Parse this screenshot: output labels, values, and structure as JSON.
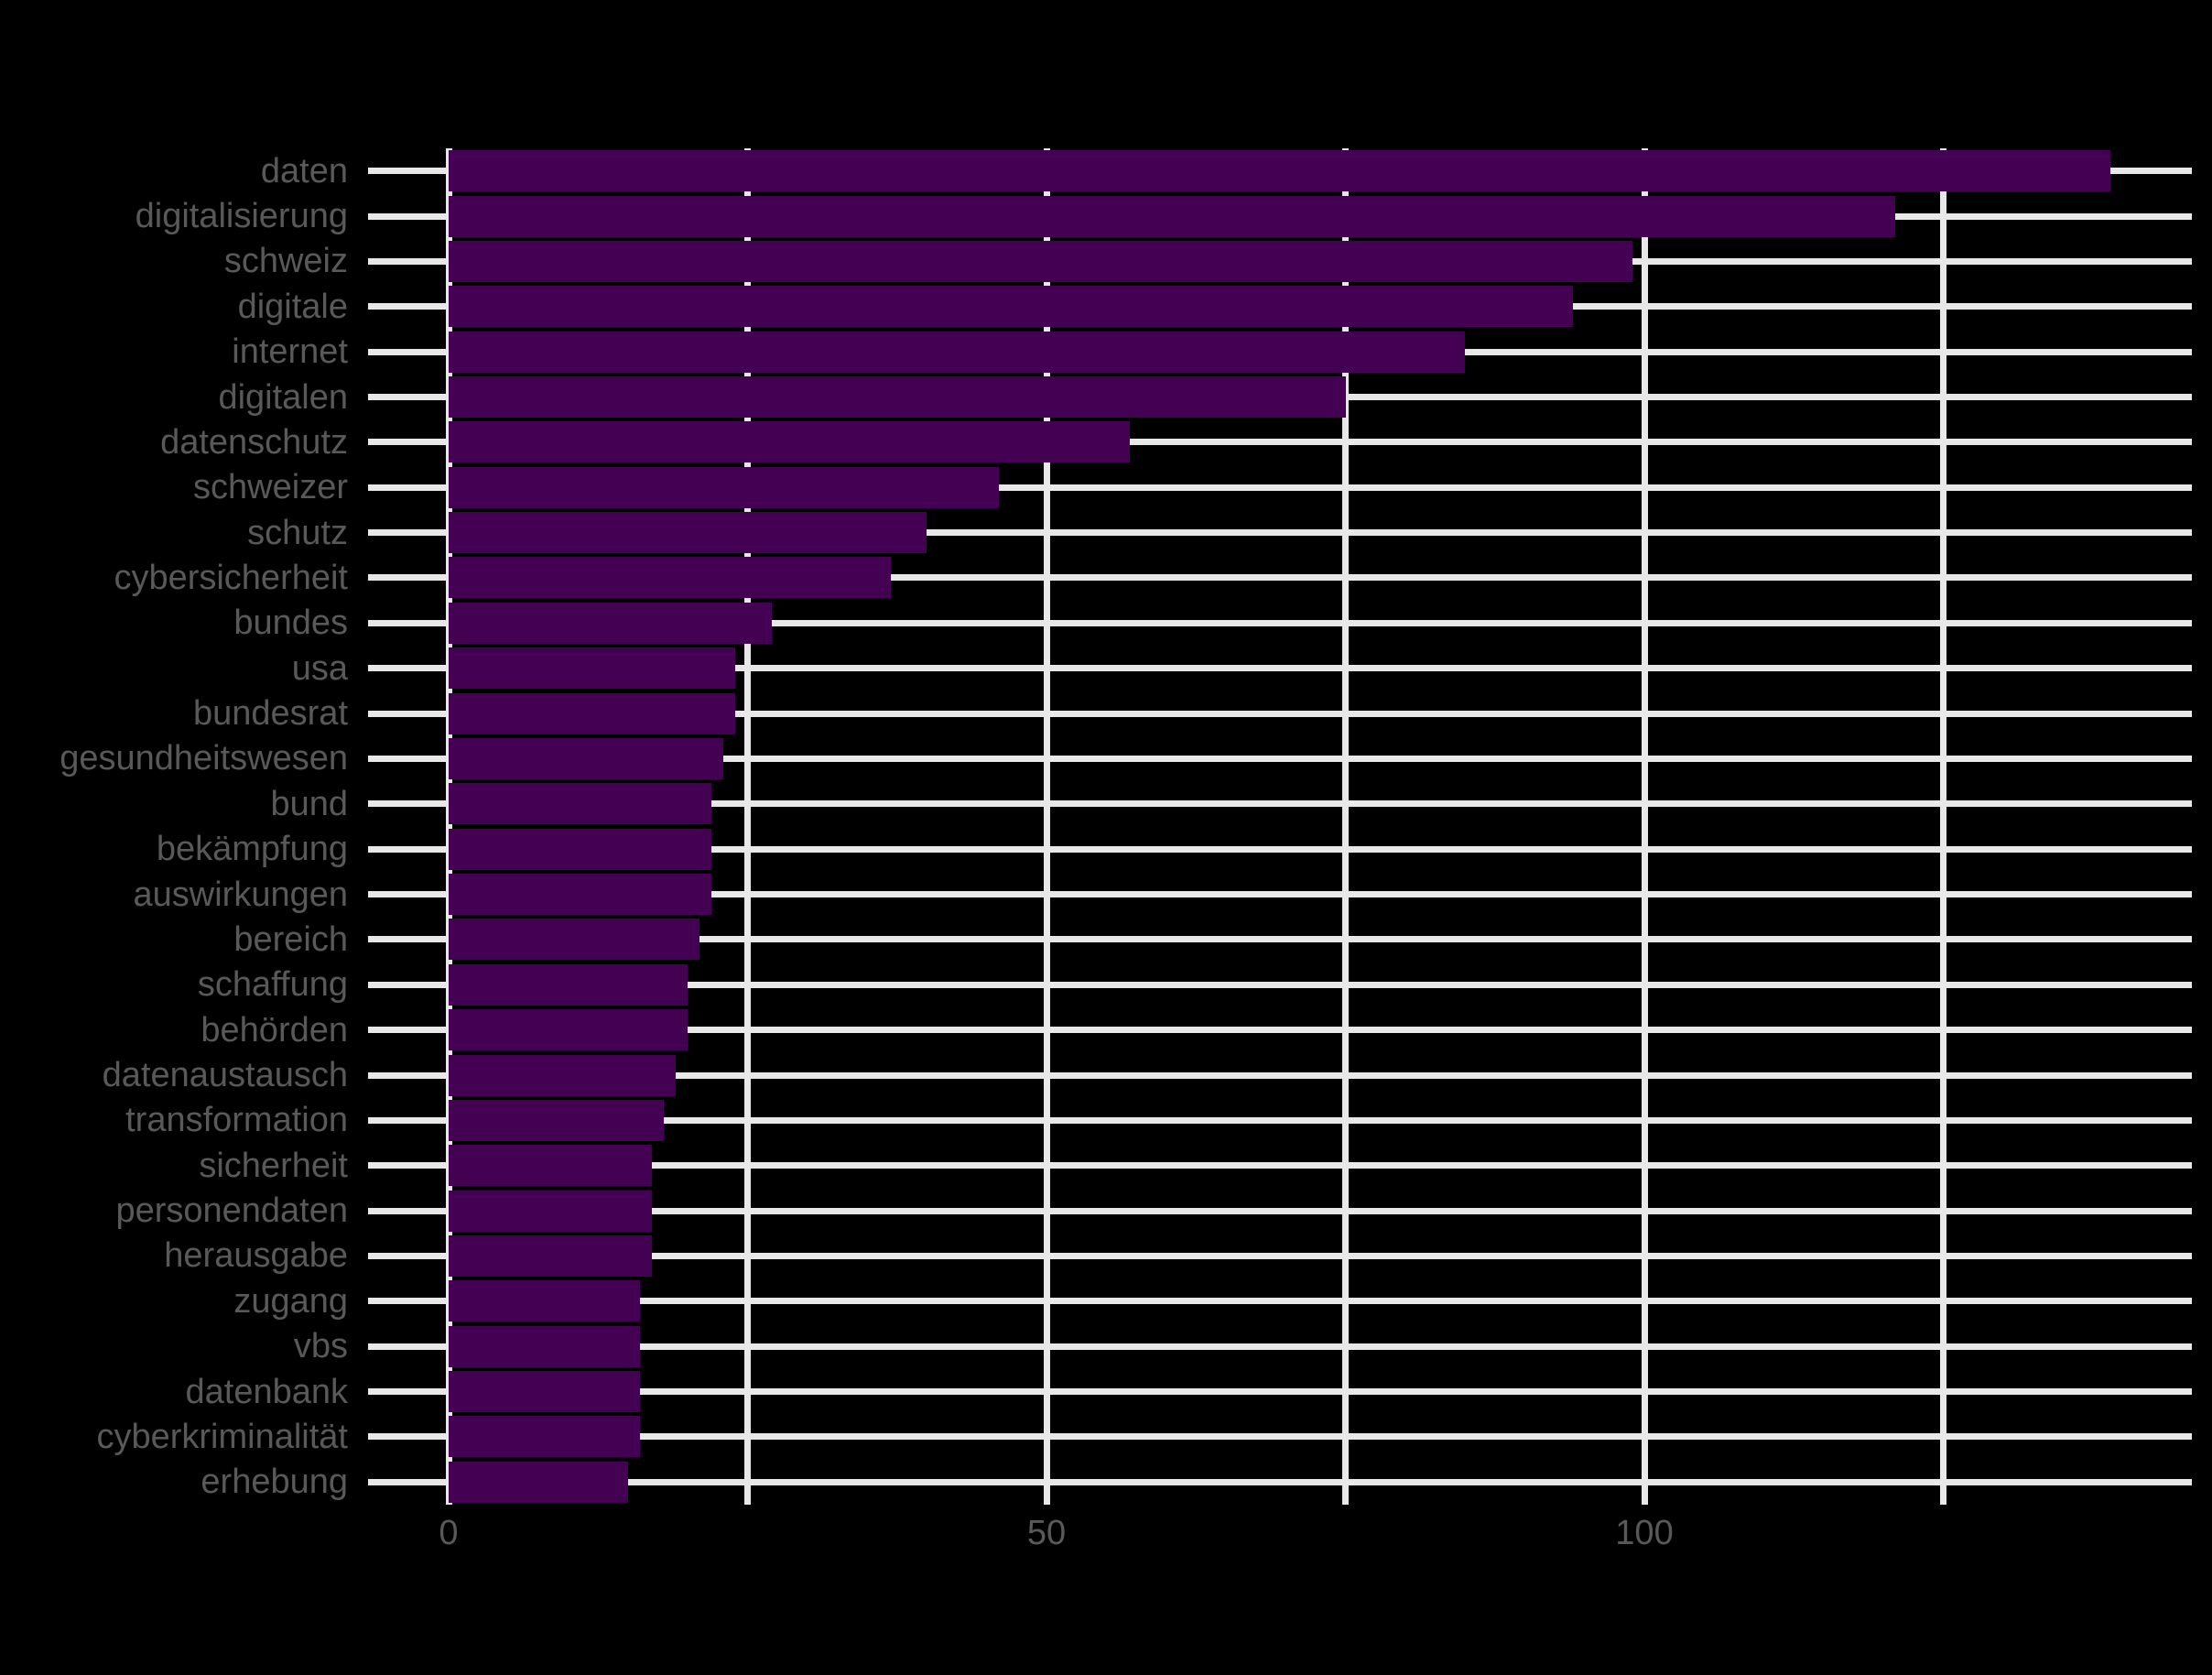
{
  "chart_data": {
    "type": "bar",
    "orientation": "horizontal",
    "title": "",
    "xlabel": "",
    "ylabel": "",
    "categories": [
      "daten",
      "digitalisierung",
      "schweiz",
      "digitale",
      "internet",
      "digitalen",
      "datenschutz",
      "schweizer",
      "schutz",
      "cybersicherheit",
      "bundes",
      "usa",
      "bundesrat",
      "gesundheitswesen",
      "bund",
      "bekämpfung",
      "auswirkungen",
      "bereich",
      "schaffung",
      "behörden",
      "datenaustausch",
      "transformation",
      "sicherheit",
      "personendaten",
      "herausgabe",
      "zugang",
      "vbs",
      "datenbank",
      "cyberkriminalität",
      "erhebung"
    ],
    "values": [
      139,
      121,
      99,
      94,
      85,
      75,
      57,
      46,
      40,
      37,
      27,
      24,
      24,
      23,
      22,
      22,
      22,
      21,
      20,
      20,
      19,
      18,
      17,
      17,
      17,
      16,
      16,
      16,
      16,
      15
    ],
    "x_tick_labels": [
      "0",
      "50",
      "100"
    ],
    "x_tick_values": [
      0,
      50,
      100
    ],
    "x_gridline_values": [
      0,
      25,
      50,
      75,
      100,
      125
    ],
    "xlim": [
      0,
      146
    ],
    "grid": true,
    "legend": false,
    "colors": {
      "background": "#000000",
      "bar": "#440154",
      "gridline": "#e8e8e8",
      "axis_text": "#595959"
    }
  }
}
